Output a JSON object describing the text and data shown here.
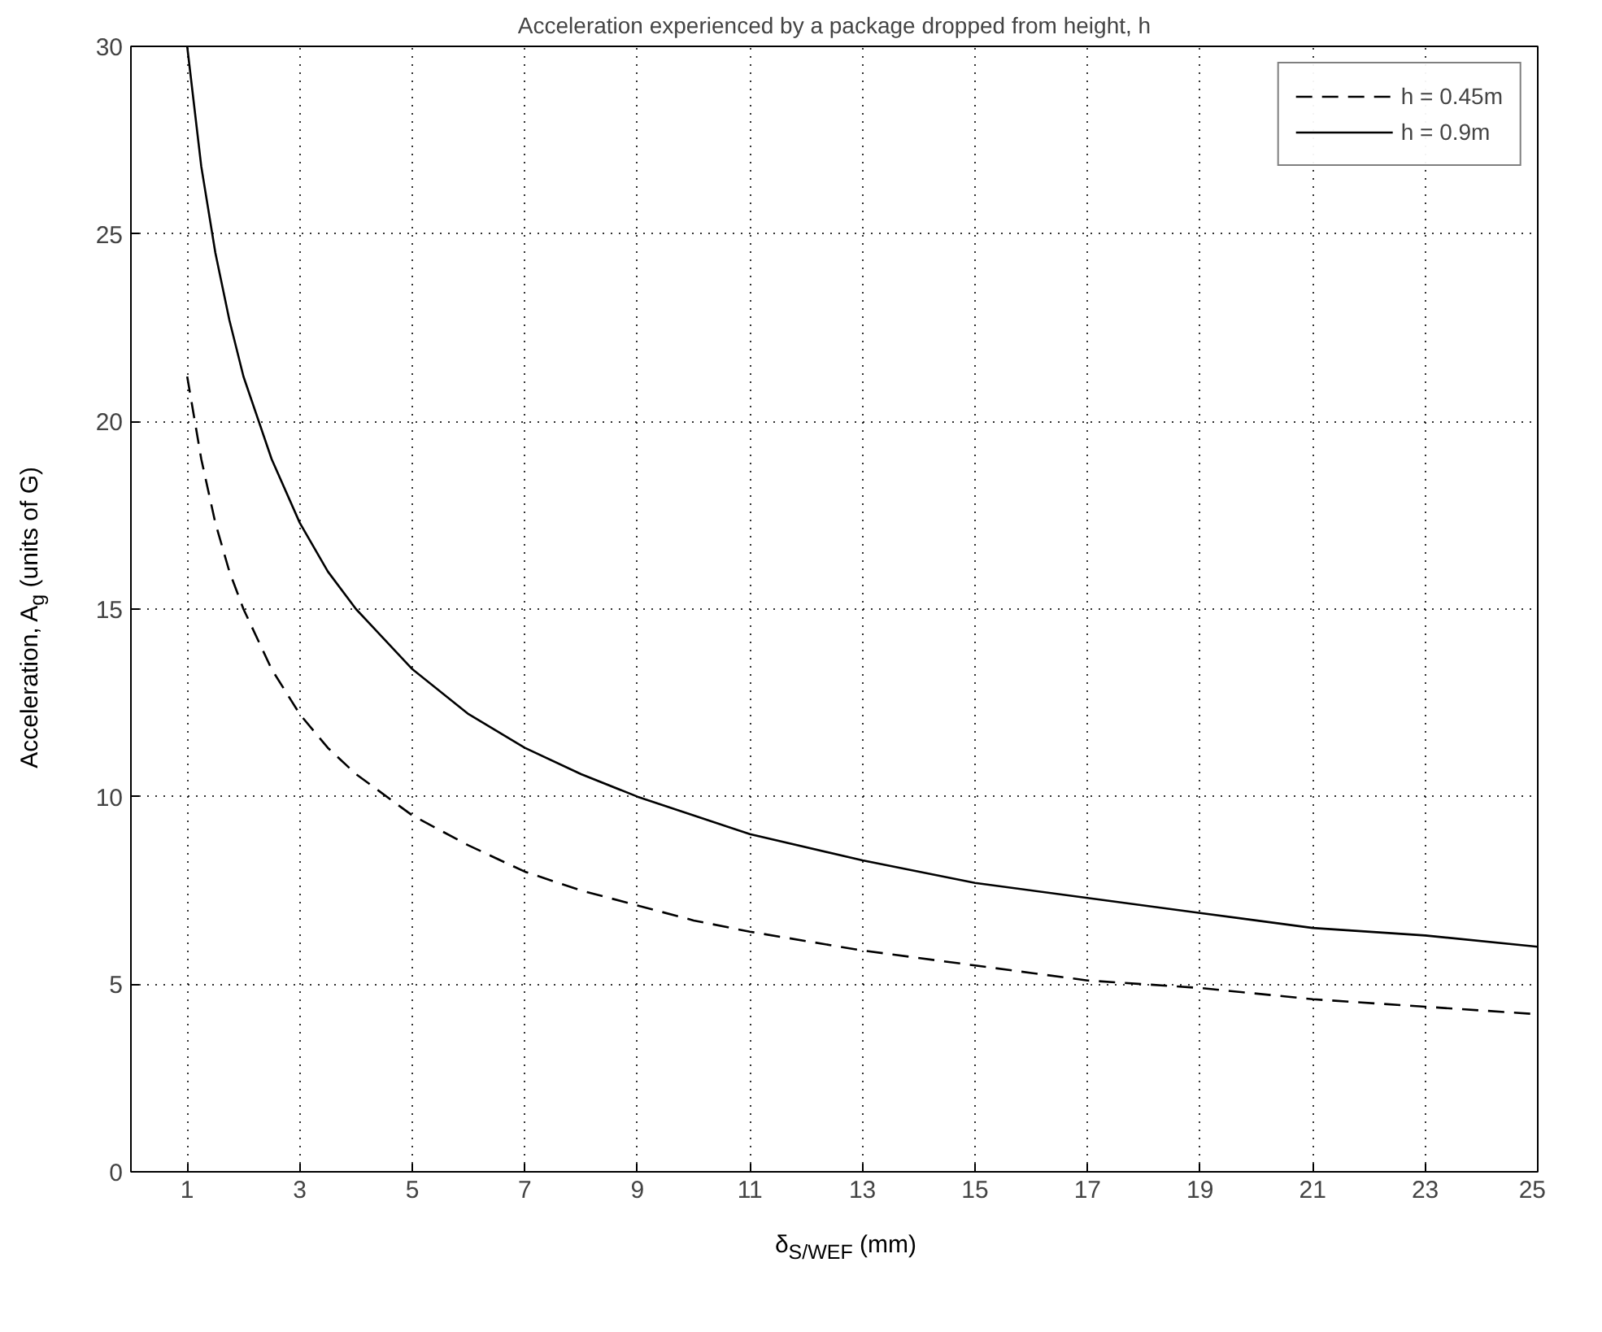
{
  "chart_data": {
    "type": "line",
    "title": "Acceleration experienced by a package dropped from height, h",
    "xlabel": "δ$_{S/WEF}$ (mm)",
    "ylabel": "Acceleration, A$_{g}$ (units of G)",
    "x": [
      1,
      1.25,
      1.5,
      1.75,
      2,
      2.5,
      3,
      3.5,
      4,
      5,
      6,
      7,
      8,
      9,
      10,
      11,
      13,
      15,
      17,
      19,
      21,
      23,
      25
    ],
    "series": [
      {
        "name": "h = 0.45m",
        "color": "#000000",
        "line_style": "dashed",
        "values": [
          21.2,
          19.0,
          17.3,
          16.0,
          15.0,
          13.4,
          12.2,
          11.3,
          10.6,
          9.5,
          8.7,
          8.0,
          7.5,
          7.1,
          6.7,
          6.4,
          5.9,
          5.5,
          5.1,
          4.9,
          4.6,
          4.4,
          4.2
        ]
      },
      {
        "name": "h = 0.9m",
        "color": "#000000",
        "line_style": "solid",
        "values": [
          30.0,
          26.8,
          24.5,
          22.7,
          21.2,
          19.0,
          17.3,
          16.0,
          15.0,
          13.4,
          12.2,
          11.3,
          10.6,
          10.0,
          9.5,
          9.0,
          8.3,
          7.7,
          7.3,
          6.9,
          6.5,
          6.3,
          6.0
        ]
      }
    ],
    "xlim": [
      0,
      25
    ],
    "xticks": [
      1,
      3,
      5,
      7,
      9,
      11,
      13,
      15,
      17,
      19,
      21,
      23,
      25
    ],
    "ylim": [
      0,
      30
    ],
    "yticks": [
      0,
      5,
      10,
      15,
      20,
      25,
      30
    ],
    "grid": true,
    "legend": "top right"
  }
}
